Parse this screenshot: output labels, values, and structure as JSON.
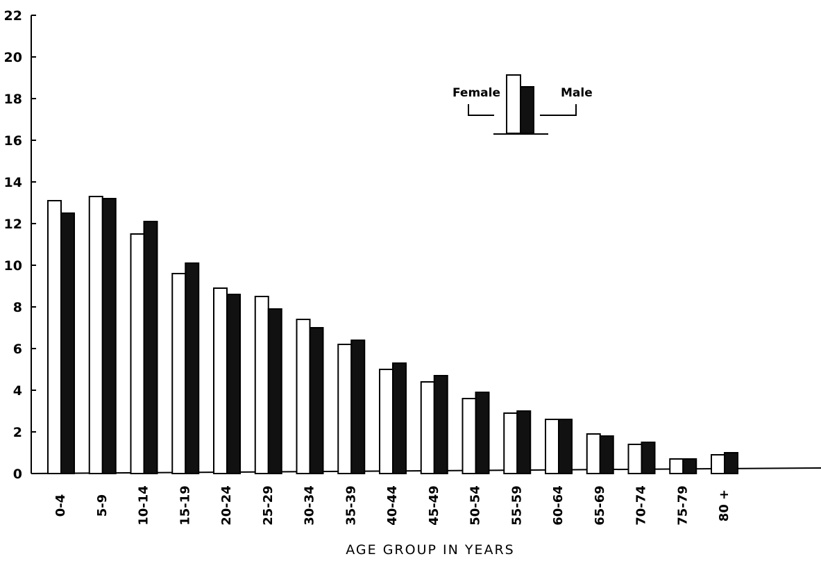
{
  "chart_data": {
    "type": "bar",
    "xlabel": "AGE   GROUP   IN   YEARS",
    "ylabel": "",
    "ylim": [
      0,
      22
    ],
    "yticks": [
      "0",
      "2",
      "4",
      "6",
      "8",
      "10",
      "12",
      "14",
      "16",
      "18",
      "20",
      "22"
    ],
    "categories": [
      "0-4",
      "5-9",
      "10-14",
      "15-19",
      "20-24",
      "25-29",
      "30-34",
      "35-39",
      "40-44",
      "45-49",
      "50-54",
      "55-59",
      "60-64",
      "65-69",
      "70-74",
      "75-79",
      "80 +"
    ],
    "series": [
      {
        "name": "Female",
        "color": "#ffffff",
        "values": [
          13.1,
          13.3,
          11.5,
          9.6,
          8.9,
          8.5,
          7.4,
          6.2,
          5.0,
          4.4,
          3.6,
          2.9,
          2.6,
          1.9,
          1.4,
          0.7,
          0.9
        ]
      },
      {
        "name": "Male",
        "color": "#111111",
        "values": [
          12.5,
          13.2,
          12.1,
          10.1,
          8.6,
          7.9,
          7.0,
          6.4,
          5.3,
          4.7,
          3.9,
          3.0,
          2.6,
          1.8,
          1.5,
          0.7,
          1.0
        ]
      }
    ],
    "legend": {
      "position": "top-right",
      "female_label": "Female",
      "male_label": "Male"
    },
    "grid": false
  }
}
